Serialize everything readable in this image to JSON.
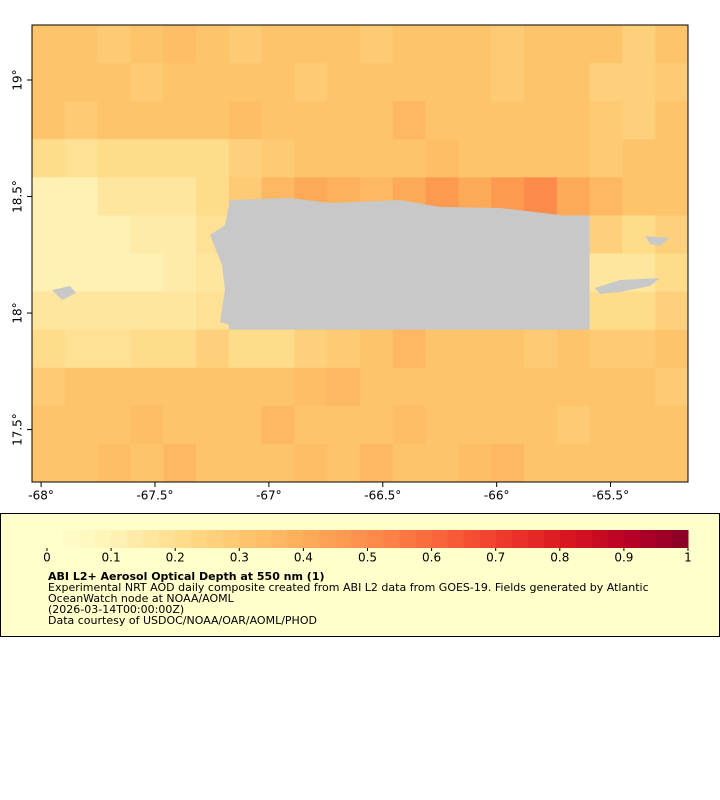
{
  "chart_data": {
    "type": "heatmap",
    "xlim": [
      -68.04,
      -65.16
    ],
    "ylim": [
      17.275,
      19.236
    ],
    "xticks": [
      {
        "value": -68,
        "label": "-68°"
      },
      {
        "value": -67.5,
        "label": "-67.5°"
      },
      {
        "value": -67,
        "label": "-67°"
      },
      {
        "value": -66.5,
        "label": "-66.5°"
      },
      {
        "value": -66,
        "label": "-66°"
      },
      {
        "value": -65.5,
        "label": "-65.5°"
      }
    ],
    "yticks": [
      {
        "value": 17.5,
        "label": "17.5°"
      },
      {
        "value": 18,
        "label": "18°"
      },
      {
        "value": 18.5,
        "label": "18.5°"
      },
      {
        "value": 19,
        "label": "19°"
      }
    ],
    "land_color": "#c8c8c8",
    "values": [
      [
        0.3,
        0.32,
        0.28,
        0.3,
        0.33,
        0.3,
        0.28,
        0.3,
        0.32,
        0.3,
        0.28,
        0.3,
        0.31,
        0.3,
        0.28,
        0.3,
        0.32,
        0.3,
        0.27,
        0.3
      ],
      [
        0.32,
        0.3,
        0.3,
        0.28,
        0.3,
        0.32,
        0.3,
        0.3,
        0.28,
        0.3,
        0.32,
        0.3,
        0.3,
        0.3,
        0.28,
        0.3,
        0.3,
        0.27,
        0.25,
        0.28
      ],
      [
        0.3,
        0.28,
        0.3,
        0.32,
        0.3,
        0.3,
        0.33,
        0.3,
        0.3,
        0.32,
        0.3,
        0.35,
        0.3,
        0.3,
        0.32,
        0.3,
        0.3,
        0.28,
        0.26,
        0.3
      ],
      [
        0.2,
        0.18,
        0.2,
        0.22,
        0.2,
        0.22,
        0.25,
        0.28,
        0.3,
        0.3,
        0.32,
        0.3,
        0.33,
        0.32,
        0.3,
        0.3,
        0.3,
        0.28,
        0.3,
        0.3
      ],
      [
        0.12,
        0.12,
        0.15,
        0.15,
        0.15,
        0.2,
        0.28,
        0.35,
        0.4,
        0.38,
        0.35,
        0.4,
        0.45,
        0.42,
        0.45,
        0.5,
        0.4,
        0.35,
        0.3,
        0.32
      ],
      [
        0.12,
        0.12,
        0.12,
        0.13,
        0.14,
        0.18,
        null,
        null,
        null,
        null,
        null,
        null,
        null,
        null,
        null,
        null,
        null,
        0.25,
        0.2,
        0.25
      ],
      [
        0.12,
        0.1,
        0.12,
        0.12,
        0.13,
        0.16,
        null,
        null,
        null,
        null,
        null,
        null,
        null,
        null,
        null,
        null,
        null,
        0.15,
        0.15,
        0.2
      ],
      [
        0.15,
        0.15,
        0.15,
        0.15,
        0.16,
        0.18,
        null,
        null,
        null,
        null,
        null,
        null,
        null,
        null,
        null,
        null,
        null,
        0.2,
        0.22,
        0.25
      ],
      [
        0.2,
        0.18,
        0.18,
        0.2,
        0.22,
        0.25,
        0.22,
        0.22,
        0.25,
        0.28,
        0.32,
        0.35,
        0.3,
        0.3,
        0.3,
        0.28,
        0.3,
        0.28,
        0.28,
        0.3
      ],
      [
        0.28,
        0.3,
        0.32,
        0.3,
        0.3,
        0.32,
        0.3,
        0.3,
        0.33,
        0.35,
        0.32,
        0.3,
        0.3,
        0.32,
        0.3,
        0.3,
        0.3,
        0.32,
        0.3,
        0.28
      ],
      [
        0.3,
        0.32,
        0.3,
        0.33,
        0.3,
        0.3,
        0.32,
        0.35,
        0.3,
        0.32,
        0.3,
        0.33,
        0.3,
        0.3,
        0.32,
        0.3,
        0.28,
        0.3,
        0.32,
        0.3
      ],
      [
        0.32,
        0.3,
        0.33,
        0.3,
        0.35,
        0.3,
        0.32,
        0.3,
        0.33,
        0.3,
        0.35,
        0.32,
        0.3,
        0.33,
        0.35,
        0.3,
        0.32,
        0.3,
        0.3,
        0.32
      ]
    ],
    "colorbar": {
      "lim": [
        0,
        1
      ],
      "ticks": [
        0,
        0.1,
        0.2,
        0.3,
        0.4,
        0.5,
        0.6,
        0.7,
        0.8,
        0.9,
        1
      ],
      "steps": 40,
      "colors": [
        "#ffffcc",
        "#fff0b3",
        "#fedc8a",
        "#fec46b",
        "#fdaa58",
        "#fc8a4a",
        "#f9643a",
        "#ee3a2c",
        "#d9151f",
        "#b70026",
        "#800026"
      ]
    },
    "legend": {
      "title": "ABI L2+ Aerosol Optical Depth at 550 nm (1)",
      "lines": [
        "Experimental NRT AOD daily composite created from ABI L2 data from GOES-19. Fields generated by Atlantic",
        "OceanWatch node at NOAA/AOML",
        "(2026-03-14T00:00:00Z)",
        "Data courtesy of USDOC/NOAA/OAR/AOML/PHOD"
      ]
    }
  }
}
